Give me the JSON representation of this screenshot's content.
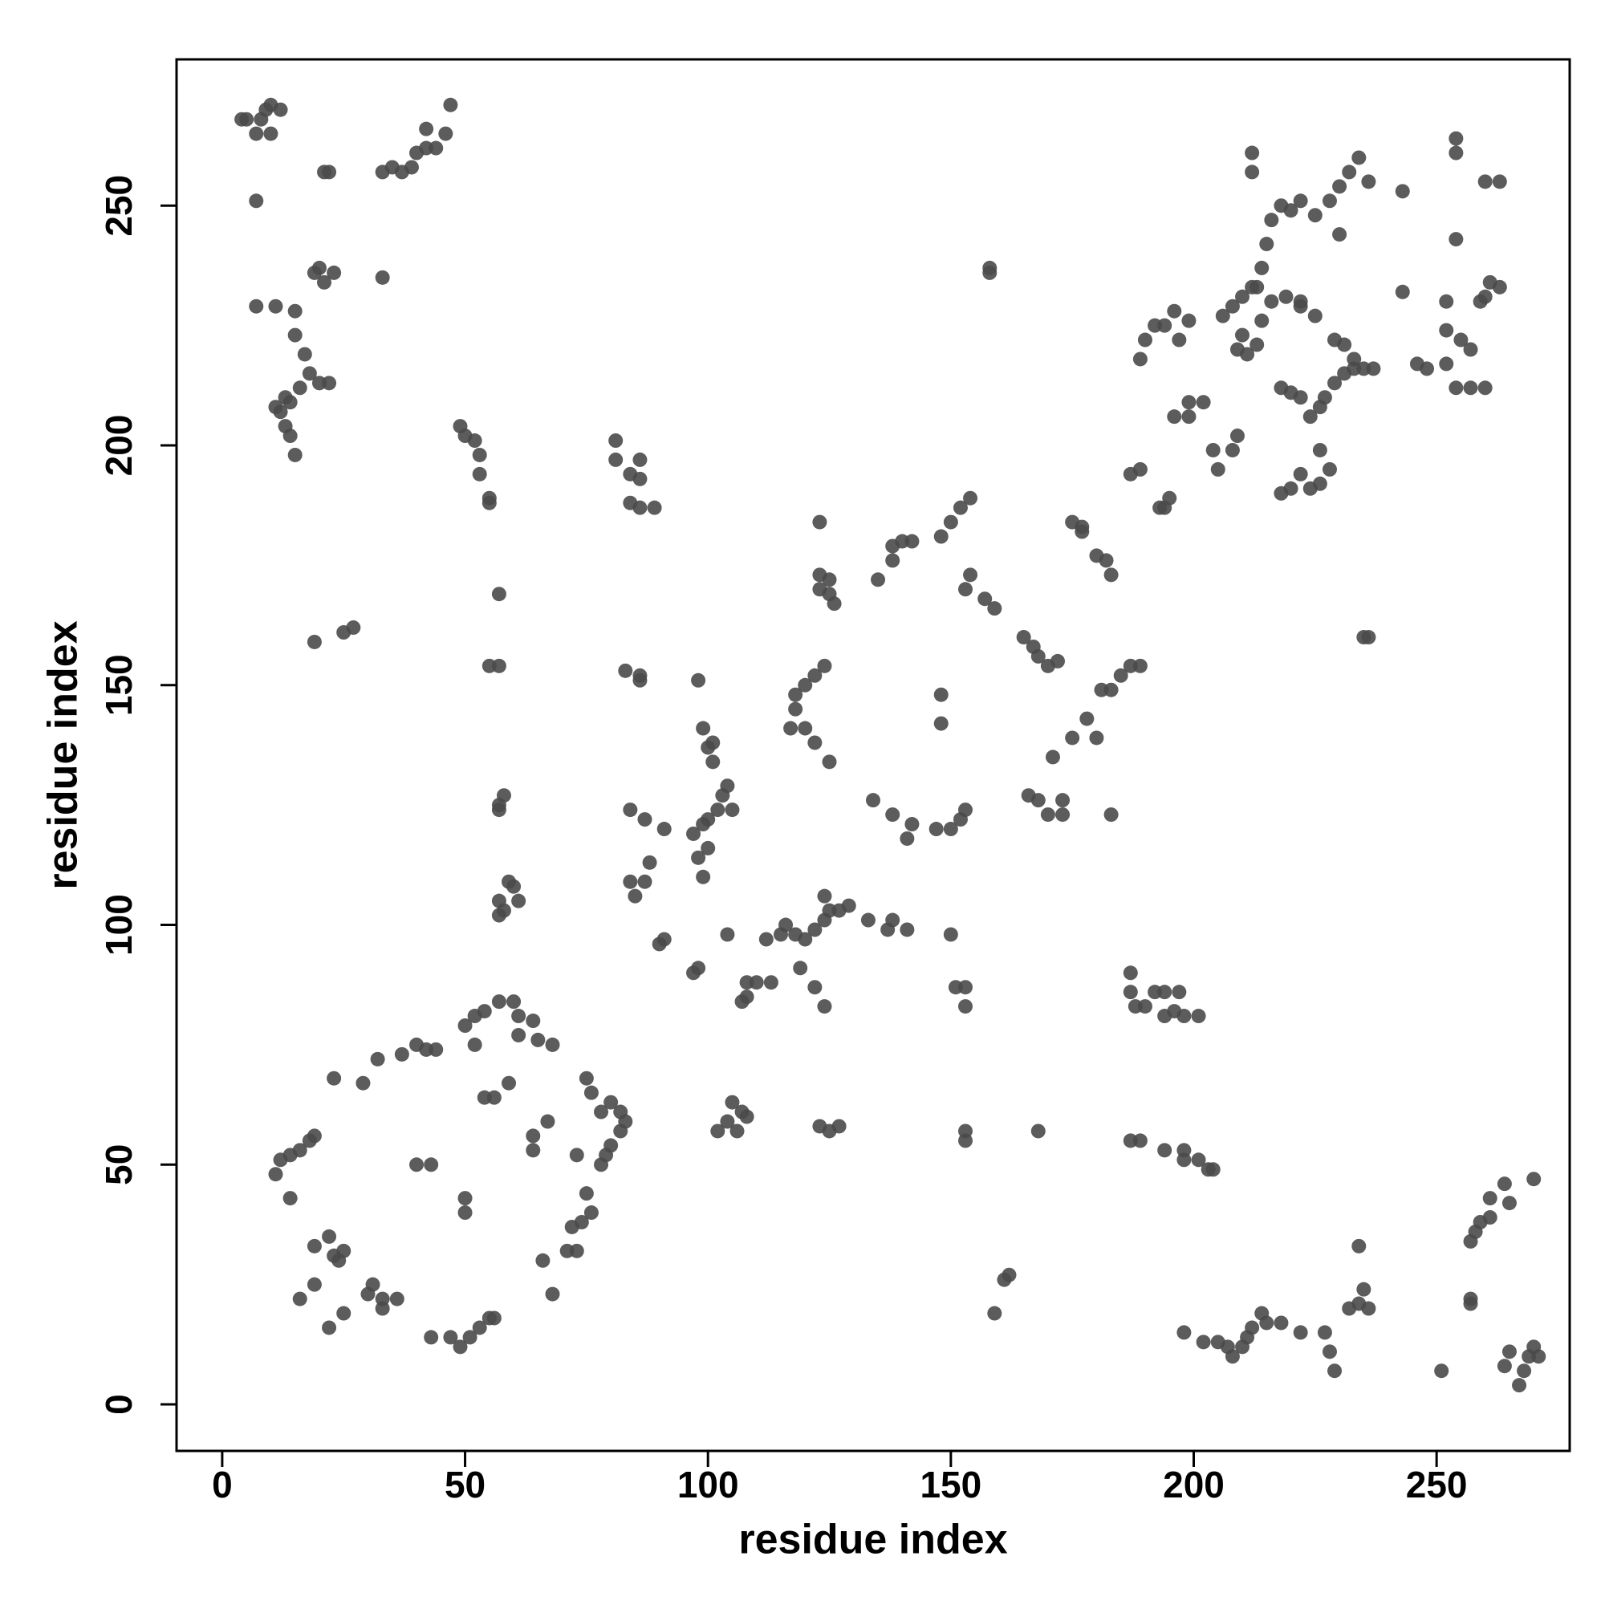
{
  "chart_data": {
    "type": "scatter",
    "x_label": "residue index",
    "y_label": "residue index",
    "color": "#4a4a4a",
    "xlim": [
      -9.4,
      277.4
    ],
    "ylim": [
      -9.7,
      280.5
    ],
    "xticks": [
      0,
      50,
      100,
      150,
      200,
      250
    ],
    "yticks": [
      0,
      50,
      100,
      150,
      200,
      250
    ],
    "x": [
      4,
      5,
      8,
      9,
      10,
      12,
      7,
      10,
      7,
      33,
      35,
      37,
      39,
      40,
      42,
      44,
      42,
      46,
      47,
      22,
      21,
      7,
      11,
      15,
      15,
      17,
      19,
      20,
      21,
      23,
      33,
      12,
      13,
      14,
      16,
      18,
      20,
      22,
      13,
      14,
      15,
      11,
      49,
      50,
      52,
      53,
      53,
      55,
      55,
      81,
      81,
      86,
      84,
      86,
      84,
      86,
      89,
      19,
      25,
      27,
      57,
      55,
      57,
      57,
      58,
      57,
      57,
      57,
      59,
      60,
      61,
      58,
      123,
      123,
      125,
      123,
      126,
      125,
      135,
      138,
      140,
      142,
      138,
      148,
      150,
      152,
      154,
      153,
      154,
      157,
      159,
      165,
      167,
      168,
      170,
      172,
      175,
      177,
      177,
      180,
      182,
      183,
      181,
      183,
      185,
      187,
      189,
      178,
      180,
      175,
      171,
      183,
      166,
      168,
      170,
      173,
      173,
      118,
      120,
      122,
      124,
      118,
      117,
      120,
      122,
      125,
      148,
      148,
      134,
      138,
      141,
      142,
      147,
      150,
      152,
      153,
      158,
      158,
      97,
      99,
      100,
      102,
      103,
      104,
      105,
      98,
      99,
      100,
      101,
      99,
      101,
      98,
      100,
      84,
      84,
      85,
      87,
      88,
      87,
      91,
      83,
      86,
      86,
      90,
      91,
      97,
      98,
      104,
      108,
      110,
      113,
      107,
      108,
      112,
      115,
      116,
      118,
      120,
      122,
      124,
      125,
      127,
      129,
      124,
      133,
      137,
      138,
      141,
      150,
      119,
      122,
      124,
      151,
      153,
      153,
      123,
      125,
      127,
      102,
      104,
      105,
      107,
      108,
      106,
      153,
      153,
      168,
      187,
      187,
      188,
      190,
      192,
      194,
      197,
      194,
      196,
      198,
      201,
      187,
      189,
      194,
      198,
      198,
      201,
      203,
      204,
      159,
      161,
      162,
      187,
      189,
      193,
      195,
      194,
      196,
      199,
      199,
      202,
      204,
      205,
      208,
      209,
      189,
      190,
      192,
      194,
      196,
      197,
      199,
      206,
      208,
      210,
      212,
      214,
      215,
      216,
      218,
      220,
      222,
      225,
      212,
      212,
      228,
      230,
      232,
      234,
      236,
      243,
      230,
      243,
      248,
      252,
      255,
      257,
      252,
      259,
      261,
      263,
      260,
      254,
      257,
      260,
      246,
      254,
      254,
      260,
      263,
      254,
      252,
      209,
      211,
      213,
      210,
      214,
      213,
      216,
      218,
      220,
      222,
      224,
      226,
      227,
      229,
      231,
      233,
      235,
      237,
      229,
      231,
      233,
      219,
      222,
      225,
      218,
      220,
      222,
      224,
      226,
      228,
      226,
      222,
      11,
      12,
      14,
      16,
      18,
      19,
      14,
      19,
      22,
      23,
      24,
      25,
      16,
      19,
      22,
      25,
      30,
      31,
      33,
      36,
      33,
      23,
      29,
      32,
      37,
      40,
      42,
      44,
      50,
      52,
      54,
      57,
      60,
      61,
      61,
      64,
      65,
      68,
      52,
      54,
      56,
      59,
      40,
      43,
      50,
      50,
      64,
      64,
      67,
      73,
      75,
      76,
      78,
      80,
      82,
      83,
      82,
      80,
      79,
      78,
      66,
      68,
      72,
      74,
      75,
      76,
      71,
      73,
      47,
      49,
      51,
      53,
      55,
      56,
      43,
      205,
      207,
      208,
      210,
      211,
      212,
      214,
      215,
      218,
      222,
      227,
      228,
      229,
      198,
      202,
      232,
      234,
      236,
      235,
      234,
      251,
      257,
      257,
      257,
      258,
      259,
      261,
      261,
      264,
      265,
      270,
      264,
      265,
      267,
      268,
      269,
      270,
      271,
      235,
      236
    ],
    "values": [
      268,
      268,
      268,
      270,
      271,
      270,
      265,
      265,
      251,
      257,
      258,
      257,
      258,
      261,
      262,
      262,
      266,
      265,
      271,
      257,
      257,
      229,
      229,
      228,
      223,
      219,
      236,
      237,
      234,
      236,
      235,
      207,
      210,
      209,
      212,
      215,
      213,
      213,
      204,
      202,
      198,
      208,
      204,
      202,
      201,
      198,
      194,
      189,
      188,
      201,
      197,
      197,
      194,
      193,
      188,
      187,
      187,
      159,
      161,
      162,
      169,
      154,
      154,
      125,
      127,
      124,
      105,
      102,
      109,
      108,
      105,
      103,
      184,
      173,
      172,
      170,
      167,
      169,
      172,
      179,
      180,
      180,
      176,
      181,
      184,
      187,
      189,
      170,
      173,
      168,
      166,
      160,
      158,
      156,
      154,
      155,
      184,
      183,
      182,
      177,
      176,
      173,
      149,
      149,
      152,
      154,
      154,
      143,
      139,
      139,
      135,
      123,
      127,
      126,
      123,
      126,
      123,
      148,
      150,
      152,
      154,
      145,
      141,
      141,
      138,
      134,
      148,
      142,
      126,
      123,
      118,
      121,
      120,
      120,
      122,
      124,
      236,
      237,
      119,
      121,
      122,
      124,
      127,
      129,
      124,
      114,
      110,
      137,
      138,
      141,
      134,
      151,
      116,
      124,
      109,
      106,
      109,
      113,
      122,
      120,
      153,
      152,
      151,
      96,
      97,
      90,
      91,
      98,
      88,
      88,
      88,
      84,
      85,
      97,
      98,
      100,
      98,
      97,
      99,
      101,
      103,
      103,
      104,
      106,
      101,
      99,
      101,
      99,
      98,
      91,
      87,
      83,
      87,
      87,
      83,
      58,
      57,
      58,
      57,
      59,
      63,
      61,
      60,
      57,
      57,
      55,
      57,
      90,
      86,
      83,
      83,
      86,
      86,
      86,
      81,
      82,
      81,
      81,
      55,
      55,
      53,
      53,
      51,
      51,
      49,
      49,
      19,
      26,
      27,
      194,
      195,
      187,
      189,
      187,
      206,
      206,
      209,
      209,
      199,
      195,
      199,
      202,
      218,
      222,
      225,
      225,
      228,
      222,
      226,
      227,
      229,
      231,
      233,
      237,
      242,
      247,
      250,
      249,
      251,
      248,
      257,
      261,
      251,
      254,
      257,
      260,
      255,
      253,
      244,
      232,
      216,
      217,
      222,
      220,
      224,
      230,
      234,
      233,
      231,
      212,
      212,
      212,
      217,
      261,
      264,
      255,
      255,
      243,
      230,
      220,
      219,
      221,
      223,
      226,
      233,
      230,
      212,
      211,
      210,
      206,
      208,
      210,
      213,
      215,
      216,
      216,
      216,
      222,
      221,
      218,
      231,
      229,
      227,
      190,
      191,
      194,
      191,
      192,
      195,
      199,
      230,
      48,
      51,
      52,
      53,
      55,
      56,
      43,
      33,
      35,
      31,
      30,
      32,
      22,
      25,
      16,
      19,
      23,
      25,
      22,
      22,
      20,
      68,
      67,
      72,
      73,
      75,
      74,
      74,
      79,
      81,
      82,
      84,
      84,
      81,
      77,
      80,
      76,
      75,
      75,
      64,
      64,
      67,
      50,
      50,
      43,
      40,
      56,
      53,
      59,
      52,
      68,
      65,
      61,
      63,
      61,
      59,
      57,
      54,
      52,
      50,
      30,
      23,
      37,
      38,
      44,
      40,
      32,
      32,
      14,
      12,
      14,
      16,
      18,
      18,
      14,
      13,
      12,
      10,
      12,
      14,
      16,
      19,
      17,
      17,
      15,
      15,
      11,
      7,
      15,
      13,
      20,
      21,
      20,
      24,
      33,
      7,
      21,
      22,
      34,
      36,
      38,
      39,
      43,
      46,
      42,
      47,
      8,
      11,
      4,
      7,
      10,
      12,
      10,
      160,
      160
    ]
  }
}
